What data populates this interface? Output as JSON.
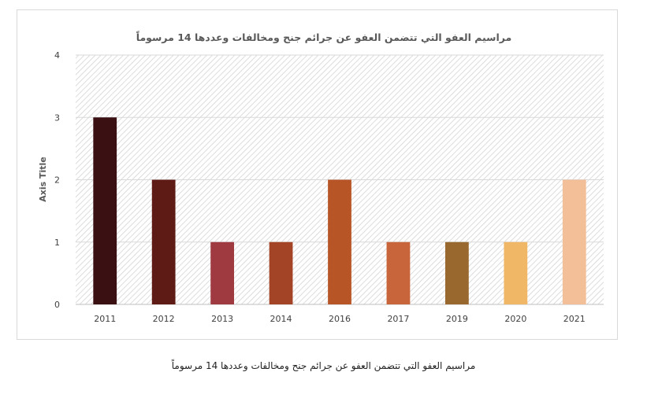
{
  "chart_data": {
    "type": "bar",
    "title": "مراسيم العفو التي تتضمن العفو عن جرائم جنح ومخالفات وعددها 14 مرسوماً",
    "xlabel": "",
    "ylabel": "Axis Title",
    "ylim": [
      0,
      4
    ],
    "yticks": [
      0,
      1,
      2,
      3,
      4
    ],
    "grid": true,
    "legend": "none",
    "categories": [
      "2011",
      "2012",
      "2013",
      "2014",
      "2016",
      "2017",
      "2019",
      "2020",
      "2021"
    ],
    "values": [
      3,
      2,
      1,
      1,
      2,
      1,
      1,
      1,
      2
    ],
    "colors": [
      "#3b1012",
      "#5e1a14",
      "#9e3a40",
      "#a34426",
      "#b85527",
      "#c8653a",
      "#98682f",
      "#f0b866",
      "#f3bf98"
    ]
  },
  "caption": "مراسيم العفو التي تتضمن العفو عن جرائم جنح ومخالفات وعددها 14 مرسوماً"
}
